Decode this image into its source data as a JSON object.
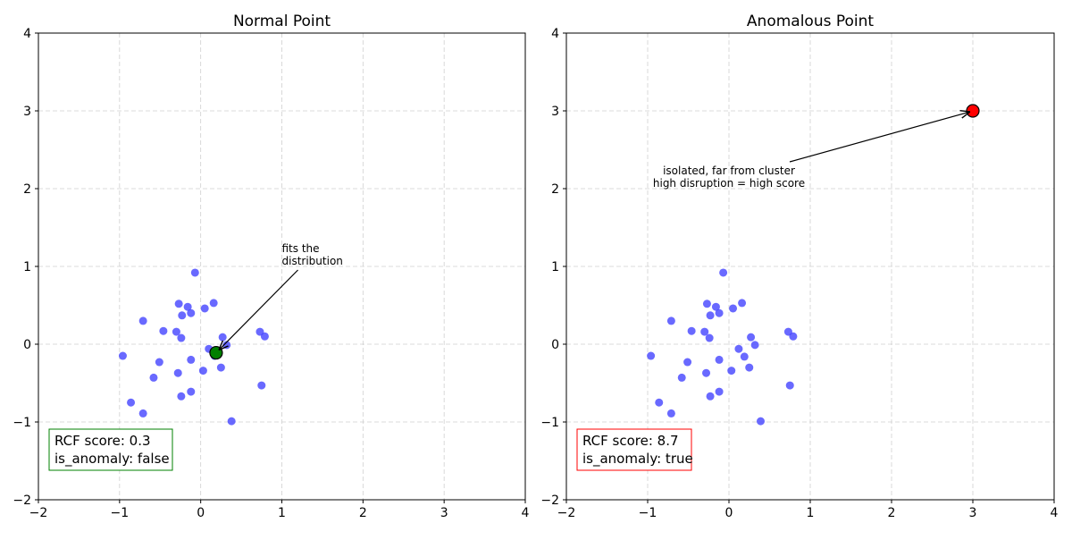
{
  "chart_data": [
    {
      "type": "scatter",
      "title": "Normal Point",
      "xlim": [
        -2,
        4
      ],
      "ylim": [
        -2,
        4
      ],
      "xticks": [
        -2,
        -1,
        0,
        1,
        2,
        3,
        4
      ],
      "yticks": [
        -2,
        -1,
        0,
        1,
        2,
        3,
        4
      ],
      "grid": true,
      "cluster_color": "#4444ff",
      "cluster": [
        [
          -0.07,
          0.92
        ],
        [
          -0.71,
          0.3
        ],
        [
          -0.27,
          0.52
        ],
        [
          -0.16,
          0.48
        ],
        [
          -0.12,
          0.4
        ],
        [
          -0.23,
          0.37
        ],
        [
          0.05,
          0.46
        ],
        [
          0.16,
          0.53
        ],
        [
          -0.46,
          0.17
        ],
        [
          -0.3,
          0.16
        ],
        [
          -0.24,
          0.08
        ],
        [
          -0.96,
          -0.15
        ],
        [
          -0.51,
          -0.23
        ],
        [
          -0.58,
          -0.43
        ],
        [
          -0.28,
          -0.37
        ],
        [
          -0.12,
          -0.2
        ],
        [
          0.03,
          -0.34
        ],
        [
          0.1,
          -0.06
        ],
        [
          0.17,
          -0.15
        ],
        [
          0.27,
          0.09
        ],
        [
          0.32,
          -0.01
        ],
        [
          0.25,
          -0.3
        ],
        [
          -0.12,
          -0.61
        ],
        [
          -0.24,
          -0.67
        ],
        [
          -0.86,
          -0.75
        ],
        [
          -0.71,
          -0.89
        ],
        [
          0.38,
          -0.99
        ],
        [
          0.73,
          0.16
        ],
        [
          0.79,
          0.1
        ],
        [
          0.75,
          -0.53
        ]
      ],
      "highlight": {
        "x": 0.19,
        "y": -0.11,
        "color": "#008000"
      },
      "annotation": {
        "lines": [
          "fits the",
          "distribution"
        ],
        "x": 1.0,
        "y": 1.0
      },
      "score_box": {
        "lines": [
          "RCF score: 0.3",
          "is_anomaly: false"
        ],
        "color": "#008000"
      }
    },
    {
      "type": "scatter",
      "title": "Anomalous Point",
      "xlim": [
        -2,
        4
      ],
      "ylim": [
        -2,
        4
      ],
      "xticks": [
        -2,
        -1,
        0,
        1,
        2,
        3,
        4
      ],
      "yticks": [
        -2,
        -1,
        0,
        1,
        2,
        3,
        4
      ],
      "grid": true,
      "cluster_color": "#4444ff",
      "cluster": [
        [
          -0.07,
          0.92
        ],
        [
          -0.71,
          0.3
        ],
        [
          -0.27,
          0.52
        ],
        [
          -0.16,
          0.48
        ],
        [
          -0.12,
          0.4
        ],
        [
          -0.23,
          0.37
        ],
        [
          0.05,
          0.46
        ],
        [
          0.16,
          0.53
        ],
        [
          -0.46,
          0.17
        ],
        [
          -0.3,
          0.16
        ],
        [
          -0.24,
          0.08
        ],
        [
          -0.96,
          -0.15
        ],
        [
          -0.51,
          -0.23
        ],
        [
          -0.58,
          -0.43
        ],
        [
          -0.28,
          -0.37
        ],
        [
          -0.12,
          -0.2
        ],
        [
          0.03,
          -0.34
        ],
        [
          0.12,
          -0.06
        ],
        [
          0.19,
          -0.16
        ],
        [
          0.27,
          0.09
        ],
        [
          0.32,
          -0.01
        ],
        [
          0.25,
          -0.3
        ],
        [
          -0.12,
          -0.61
        ],
        [
          -0.23,
          -0.67
        ],
        [
          -0.86,
          -0.75
        ],
        [
          -0.71,
          -0.89
        ],
        [
          0.39,
          -0.99
        ],
        [
          0.73,
          0.16
        ],
        [
          0.79,
          0.1
        ],
        [
          0.75,
          -0.53
        ]
      ],
      "highlight": {
        "x": 3,
        "y": 3,
        "color": "#ff0000"
      },
      "annotation": {
        "lines": [
          "isolated, far from cluster",
          "high disruption = high score"
        ],
        "x": 0.0,
        "y": 2.0
      },
      "score_box": {
        "lines": [
          "RCF score: 8.7",
          "is_anomaly: true"
        ],
        "color": "#ff0000"
      }
    }
  ]
}
